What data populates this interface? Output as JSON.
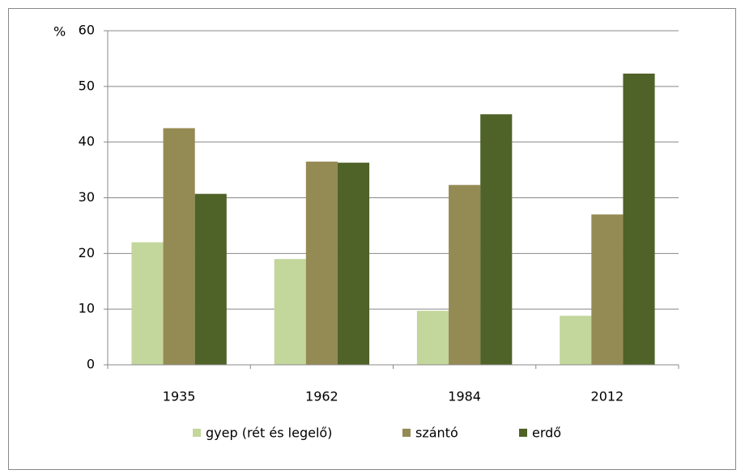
{
  "chart_data": {
    "type": "bar",
    "y_label": "%",
    "categories": [
      "1935",
      "1962",
      "1984",
      "2012"
    ],
    "series": [
      {
        "name": "gyep (rét és legelő)",
        "color": "#c3d69b",
        "values": [
          22,
          19,
          9.7,
          8.8
        ]
      },
      {
        "name": "szántó",
        "color": "#948a54",
        "values": [
          42.5,
          36.5,
          32.3,
          27
        ]
      },
      {
        "name": "erdő",
        "color": "#4f6228",
        "values": [
          30.7,
          36.3,
          45,
          52.3
        ]
      }
    ],
    "ylim": [
      0,
      60
    ],
    "yticks": [
      0,
      10,
      20,
      30,
      40,
      50,
      60
    ],
    "grid": true,
    "legend": "bottom"
  }
}
